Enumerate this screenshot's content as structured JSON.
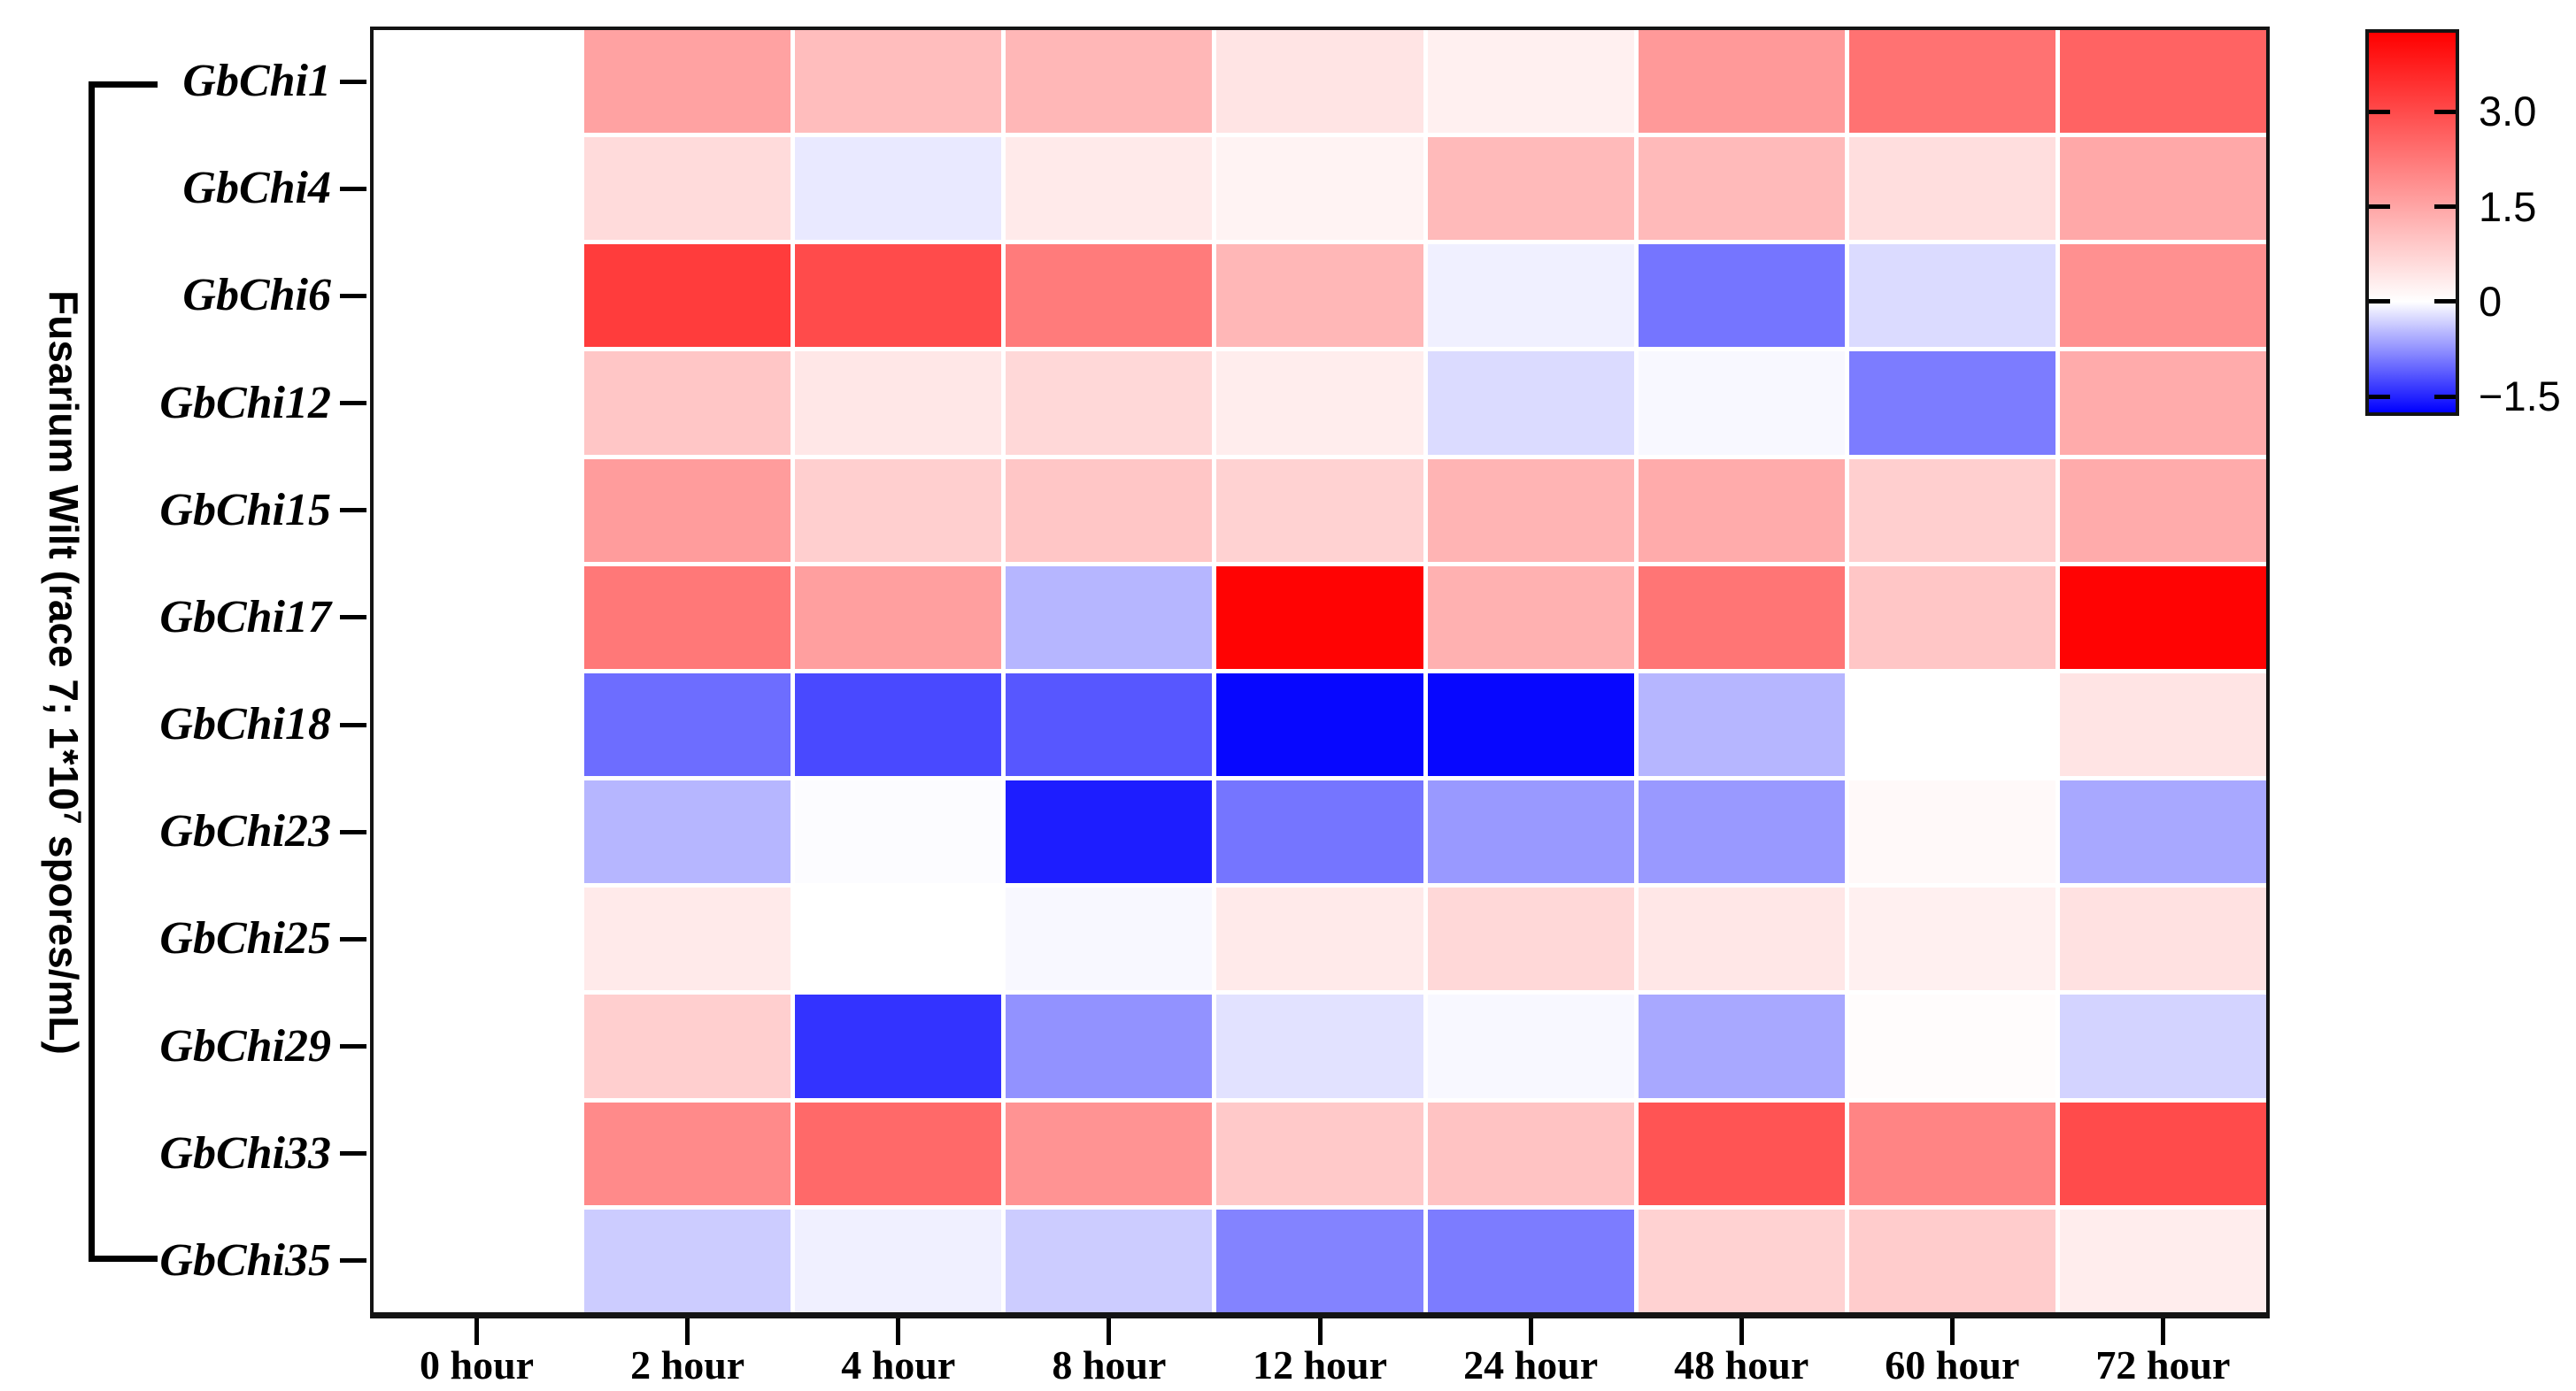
{
  "figure": {
    "y_axis_title": {
      "prefix": "Fusarium Wilt (race 7; 1*10",
      "superscript": "7",
      "suffix": " spores/mL)"
    }
  },
  "chart_data": {
    "type": "heatmap",
    "title": "",
    "y_axis_title": "Fusarium Wilt (race 7; 1*10^7 spores/mL)",
    "rows": [
      "GbChi1",
      "GbChi4",
      "GbChi6",
      "GbChi12",
      "GbChi15",
      "GbChi17",
      "GbChi18",
      "GbChi23",
      "GbChi25",
      "GbChi29",
      "GbChi33",
      "GbChi35"
    ],
    "columns": [
      "0 hour",
      "2 hour",
      "4 hour",
      "8 hour",
      "12 hour",
      "24 hour",
      "48 hour",
      "60 hour",
      "72 hour"
    ],
    "values": [
      [
        0,
        1.55,
        1.1,
        1.2,
        0.45,
        0.25,
        1.7,
        2.35,
        2.6
      ],
      [
        0,
        0.6,
        -0.15,
        0.35,
        0.2,
        1.15,
        1.15,
        0.55,
        1.45
      ],
      [
        0,
        3.25,
        3.0,
        2.2,
        1.2,
        -0.1,
        -0.95,
        -0.25,
        1.85
      ],
      [
        0,
        0.95,
        0.4,
        0.65,
        0.3,
        -0.25,
        -0.05,
        -0.9,
        1.4
      ],
      [
        0,
        1.65,
        0.8,
        0.95,
        0.75,
        1.25,
        1.4,
        0.8,
        1.4
      ],
      [
        0,
        2.25,
        1.6,
        -0.5,
        4.2,
        1.3,
        2.3,
        0.95,
        4.2
      ],
      [
        0,
        -1.0,
        -1.25,
        -1.15,
        -1.7,
        -1.7,
        -0.5,
        0.0,
        0.45
      ],
      [
        0,
        -0.5,
        -0.02,
        -1.55,
        -0.95,
        -0.7,
        -0.7,
        0.1,
        -0.6
      ],
      [
        0,
        0.35,
        0.0,
        -0.05,
        0.35,
        0.65,
        0.4,
        0.25,
        0.5
      ],
      [
        0,
        0.8,
        -1.4,
        -0.75,
        -0.2,
        -0.05,
        -0.6,
        0.05,
        -0.3
      ],
      [
        0,
        1.95,
        2.5,
        1.8,
        0.9,
        1.0,
        2.85,
        2.05,
        3.0
      ],
      [
        0,
        -0.35,
        -0.1,
        -0.35,
        -0.85,
        -0.9,
        0.75,
        0.85,
        0.3
      ]
    ],
    "colorbar": {
      "tick_labels": [
        "3.0",
        "1.5",
        "0",
        "−1.5"
      ],
      "tick_values": [
        3.0,
        1.5,
        0,
        -1.5
      ],
      "vmax": 4.25,
      "vmin": -1.75,
      "color_max": "#FF0000",
      "color_mid": "#FFFFFF",
      "color_min": "#0000FF",
      "position": "right"
    },
    "grid": "white cell separators",
    "legend_position": "top-right"
  }
}
